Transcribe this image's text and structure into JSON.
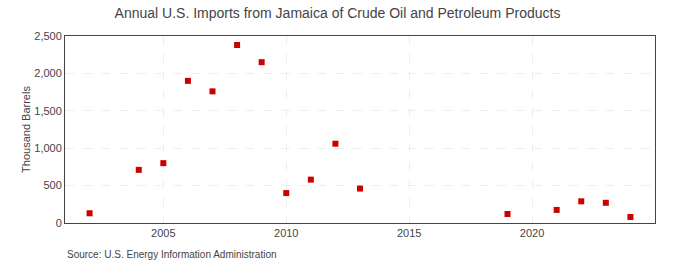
{
  "chart_data": {
    "type": "scatter",
    "title": "Annual U.S. Imports from Jamaica of Crude Oil and Petroleum Products",
    "ylabel": "Thousand Barrels",
    "annotations": [
      "Source: U.S. Energy Information Administration"
    ],
    "x": [
      2002,
      2004,
      2005,
      2006,
      2007,
      2008,
      2009,
      2010,
      2011,
      2012,
      2013,
      2019,
      2021,
      2022,
      2023,
      2024
    ],
    "values": [
      130,
      710,
      800,
      1900,
      1760,
      2380,
      2150,
      400,
      580,
      1060,
      460,
      120,
      175,
      290,
      270,
      80
    ],
    "color": "#cc0000",
    "marker": "square",
    "xlim": [
      2001,
      2025
    ],
    "ylim": [
      0,
      2500
    ],
    "xticks": [
      2005,
      2010,
      2015,
      2020
    ],
    "yticks": [
      0,
      500,
      {
        "value": 1000,
        "label": "1,000"
      },
      {
        "value": 1500,
        "label": "1,500"
      },
      {
        "value": 2000,
        "label": "2,000"
      },
      {
        "value": 2500,
        "label": "2,500"
      }
    ],
    "grid": true
  }
}
